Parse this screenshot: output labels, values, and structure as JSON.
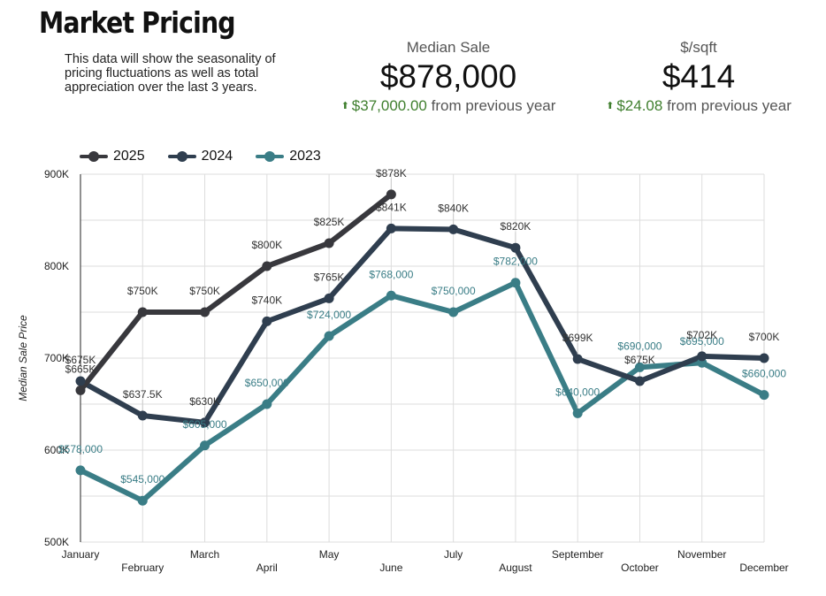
{
  "header": {
    "title": "Market Pricing",
    "description": "This data will show the seasonality of pricing fluctuations as well as total appreciation over the last 3 years."
  },
  "stats": {
    "median_sale": {
      "label": "Median Sale",
      "value": "$878,000",
      "change": "$37,000.00",
      "change_suffix": "from previous year",
      "arrow_icon": "arrow-up-icon"
    },
    "price_per_sqft": {
      "label": "$/sqft",
      "value": "$414",
      "change": "$24.08",
      "change_suffix": "from previous year",
      "arrow_icon": "arrow-up-icon"
    }
  },
  "colors": {
    "series_2025": "#38383d",
    "series_2024": "#2f3e4f",
    "series_2023": "#3a7d86",
    "positive_change": "#3f7f2e",
    "grid": "#dddddd"
  },
  "chart_data": {
    "type": "line",
    "ylabel": "Median Sale Price",
    "xlabel": "",
    "ylim": [
      500000,
      900000
    ],
    "yticks": [
      {
        "value": 500000,
        "label": "500K"
      },
      {
        "value": 600000,
        "label": "600K"
      },
      {
        "value": 700000,
        "label": "700K"
      },
      {
        "value": 800000,
        "label": "800K"
      },
      {
        "value": 900000,
        "label": "900K"
      }
    ],
    "categories": [
      "January",
      "February",
      "March",
      "April",
      "May",
      "June",
      "July",
      "August",
      "September",
      "October",
      "November",
      "December"
    ],
    "legend": [
      "2025",
      "2024",
      "2023"
    ],
    "series": [
      {
        "name": "2025",
        "values": [
          665000,
          750000,
          750000,
          800000,
          825000,
          878000,
          null,
          null,
          null,
          null,
          null,
          null
        ],
        "labels": [
          "$665K",
          "$750K",
          "$750K",
          "$800K",
          "$825K",
          "$878K",
          null,
          null,
          null,
          null,
          null,
          null
        ]
      },
      {
        "name": "2024",
        "values": [
          675000,
          637500,
          630000,
          740000,
          765000,
          841000,
          840000,
          820000,
          699000,
          675000,
          702000,
          700000
        ],
        "labels": [
          "$675K",
          "$637.5K",
          "$630K",
          "$740K",
          "$765K",
          "$841K",
          "$840K",
          "$820K",
          "$699K",
          "$675K",
          "$702K",
          "$700K"
        ]
      },
      {
        "name": "2023",
        "values": [
          578000,
          545000,
          605000,
          650000,
          724000,
          768000,
          750000,
          782000,
          640000,
          690000,
          695000,
          660000
        ],
        "labels": [
          "$578,000",
          "$545,000",
          "$605,000",
          "$650,000",
          "$724,000",
          "$768,000",
          "$750,000",
          "$782,000",
          "$640,000",
          "$690,000",
          "$695,000",
          "$660,000"
        ]
      }
    ]
  }
}
